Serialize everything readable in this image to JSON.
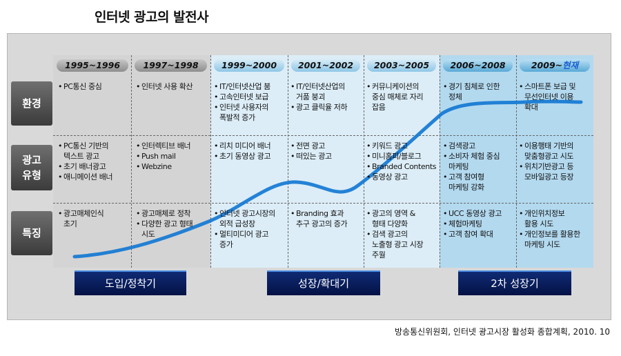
{
  "title": "인터넷 광고의 발전사",
  "periods": [
    "1995~1996",
    "1997~1998",
    "1999~2000",
    "2001~2002",
    "2003~2005",
    "2006~2008",
    "2009~"
  ],
  "period_highlight": "현재",
  "row_labels": {
    "environment": "환경",
    "ad_type": "광고\n유형",
    "features": "특징"
  },
  "cells": {
    "env": [
      [
        "PC통신 중심"
      ],
      [
        "인터넷 사용 확산"
      ],
      [
        "IT/인터넷산업 붐",
        "고속인터넷 보급",
        "인터넷 사용자의\n폭발적 증가"
      ],
      [
        "IT/인터넷산업의\n거품 붕괴",
        "광고 클릭율 저하"
      ],
      [
        "커뮤니케이션의\n중심 매체로 자리\n잡음"
      ],
      [
        "경기 침체로 인한\n정체"
      ],
      [
        "스마트폰 보급 및\n무선인터넷 이용\n확대"
      ]
    ],
    "type": [
      [
        "PC통신 기반의\n텍스트 광고",
        "초기 배너광고",
        "애니메이션 배너"
      ],
      [
        "인터렉티브 배너",
        "Push mail",
        "Webzine"
      ],
      [
        "리치 미디어 배너",
        "초기 동영상 광고"
      ],
      [
        "전면 광고",
        "떠있는 광고"
      ],
      [
        "키워드 광고",
        "미니홈피/블로그",
        "Branded Contents",
        "동영상 광고"
      ],
      [
        "검색광고",
        "소비자 체험 중심\n마케팅",
        "고객 참여형\n마케팅 강화"
      ],
      [
        "이용행태 기반의\n맞춤형광고 시도",
        "위치기반광고 등\n모바일광고 등장"
      ]
    ],
    "feat": [
      [
        "광고매체인식\n초기"
      ],
      [
        "광고매체로 정착",
        "다양한 광고 형태\n시도"
      ],
      [
        "인터넷 광고시장의\n외적 급성장",
        "멀티미디어 광고\n증가"
      ],
      [
        "Branding 효과\n추구 광고의 증가"
      ],
      [
        "광고의 영역 &\n형태 다양화",
        "검색 광고의\n노출형 광고 시장\n주월"
      ],
      [
        "UCC 동영상 광고",
        "체험마케팅",
        "고객 참여 확대"
      ],
      [
        "개인위치정보\n활용 시도",
        "개인정보를 활용한\n마케팅 시도"
      ]
    ]
  },
  "stages": [
    "도입/정착기",
    "성장/확대기",
    "2차 성장기"
  ],
  "source": "방송통신위원회, 인터넷 광고시장 활성화 종합계획, 2010. 10",
  "colors": {
    "grey_col": "#d6d6d6",
    "light_blue_col": "#dbeef8",
    "mid_blue_col": "#b7dcf2",
    "curve": "#1478d2",
    "stage_bg": "#0a1e5e"
  }
}
